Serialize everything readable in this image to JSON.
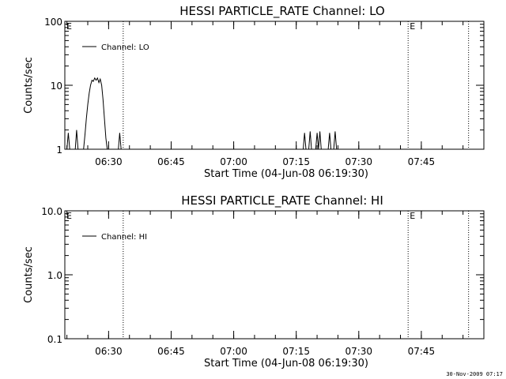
{
  "footer": {
    "timestamp": "30-Nov-2009 07:17"
  },
  "chart_data": [
    {
      "type": "line",
      "title": "HESSI PARTICLE_RATE Channel: LO",
      "xlabel": "Start Time (04-Jun-08 06:19:30)",
      "ylabel": "Counts/sec",
      "yscale": "log",
      "xlim": [
        "06:19:30",
        "08:00:00"
      ],
      "ylim": [
        1,
        100
      ],
      "xticks": [
        "06:30",
        "06:45",
        "07:00",
        "07:15",
        "07:30",
        "07:45"
      ],
      "yticks": [
        {
          "value": 1,
          "label": "1"
        },
        {
          "value": 10,
          "label": "10"
        },
        {
          "value": 100,
          "label": "100"
        }
      ],
      "legend": {
        "position": "top-left",
        "entries": [
          "Channel: LO"
        ]
      },
      "flags": [
        {
          "time": "06:19:30",
          "label": "E"
        },
        {
          "time": "07:41:50",
          "label": "E"
        }
      ],
      "vlines": [
        "06:33:30",
        "07:41:50",
        "07:56:20"
      ],
      "series": [
        {
          "name": "Channel: LO",
          "points": [
            [
              "06:20:00",
              1
            ],
            [
              "06:20:20",
              1.8
            ],
            [
              "06:20:40",
              1
            ],
            [
              "06:22:00",
              1
            ],
            [
              "06:22:20",
              2
            ],
            [
              "06:22:40",
              1
            ],
            [
              "06:24:00",
              1
            ],
            [
              "06:24:20",
              1.7
            ],
            [
              "06:24:40",
              3
            ],
            [
              "06:25:00",
              5
            ],
            [
              "06:25:20",
              7.5
            ],
            [
              "06:25:40",
              10
            ],
            [
              "06:26:00",
              12
            ],
            [
              "06:26:20",
              11.5
            ],
            [
              "06:26:40",
              13
            ],
            [
              "06:27:00",
              12
            ],
            [
              "06:27:20",
              13
            ],
            [
              "06:27:40",
              11
            ],
            [
              "06:28:00",
              12.5
            ],
            [
              "06:28:20",
              10
            ],
            [
              "06:28:40",
              6
            ],
            [
              "06:29:00",
              3
            ],
            [
              "06:29:20",
              1.5
            ],
            [
              "06:29:40",
              1
            ],
            [
              "06:32:20",
              1
            ],
            [
              "06:32:40",
              1.8
            ],
            [
              "06:33:00",
              1
            ],
            [
              "07:16:40",
              1
            ],
            [
              "07:17:00",
              1.8
            ],
            [
              "07:17:20",
              1
            ],
            [
              "07:18:00",
              1
            ],
            [
              "07:18:20",
              1.9
            ],
            [
              "07:18:40",
              1
            ],
            [
              "07:19:40",
              1
            ],
            [
              "07:20:00",
              1.8
            ],
            [
              "07:20:20",
              1
            ],
            [
              "07:20:40",
              1.9
            ],
            [
              "07:21:00",
              1
            ],
            [
              "07:22:40",
              1
            ],
            [
              "07:23:00",
              1.8
            ],
            [
              "07:23:20",
              1
            ],
            [
              "07:24:00",
              1
            ],
            [
              "07:24:20",
              1.9
            ],
            [
              "07:24:40",
              1
            ]
          ]
        }
      ]
    },
    {
      "type": "line",
      "title": "HESSI PARTICLE_RATE Channel: HI",
      "xlabel": "Start Time (04-Jun-08 06:19:30)",
      "ylabel": "Counts/sec",
      "yscale": "log",
      "xlim": [
        "06:19:30",
        "08:00:00"
      ],
      "ylim": [
        0.1,
        10
      ],
      "xticks": [
        "06:30",
        "06:45",
        "07:00",
        "07:15",
        "07:30",
        "07:45"
      ],
      "yticks": [
        {
          "value": 0.1,
          "label": "0.1"
        },
        {
          "value": 1,
          "label": "1.0"
        },
        {
          "value": 10,
          "label": "10.0"
        }
      ],
      "legend": {
        "position": "top-left",
        "entries": [
          "Channel: HI"
        ]
      },
      "flags": [
        {
          "time": "06:19:30",
          "label": "E"
        },
        {
          "time": "07:41:50",
          "label": "E"
        }
      ],
      "vlines": [
        "06:33:30",
        "07:41:50",
        "07:56:20"
      ],
      "series": [
        {
          "name": "Channel: HI",
          "points": []
        }
      ]
    }
  ]
}
